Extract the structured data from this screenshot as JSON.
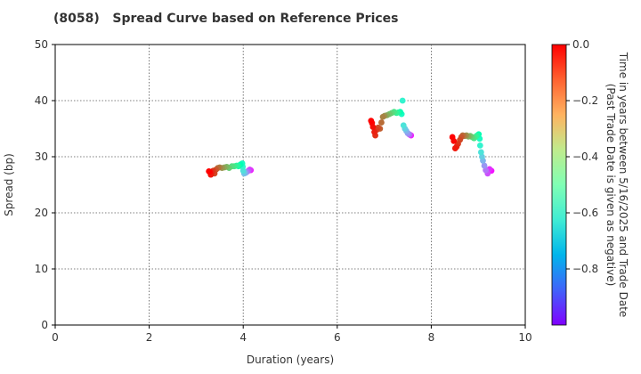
{
  "chart_data": {
    "type": "scatter",
    "title": "(8058)   Spread Curve based on Reference Prices",
    "xlabel": "Duration (years)",
    "ylabel": "Spread (bp)",
    "xlim": [
      0,
      10
    ],
    "ylim": [
      0,
      50
    ],
    "xticks": [
      "0",
      "2",
      "4",
      "6",
      "8",
      "10"
    ],
    "yticks": [
      "0",
      "10",
      "20",
      "30",
      "40",
      "50"
    ],
    "grid": true,
    "colorbar": {
      "label_line1": "Time in years between 5/16/2025 and Trade Date",
      "label_line2": "(Past Trade Date is given as negative)",
      "min": -1.0,
      "max": 0.0,
      "ticks": [
        "0.0",
        "−0.2",
        "−0.4",
        "−0.6",
        "−0.8"
      ],
      "colormap": "rainbow"
    },
    "series": [
      {
        "points": [
          [
            3.27,
            27.4,
            0.0
          ],
          [
            3.29,
            27.3,
            -0.01
          ],
          [
            3.31,
            26.8,
            -0.03
          ],
          [
            3.33,
            27.2,
            -0.05
          ],
          [
            3.36,
            27.5,
            -0.07
          ],
          [
            3.39,
            27.0,
            -0.09
          ],
          [
            3.42,
            27.7,
            -0.11
          ],
          [
            3.46,
            28.0,
            -0.14
          ],
          [
            3.5,
            28.1,
            -0.17
          ],
          [
            3.55,
            28.0,
            -0.2
          ],
          [
            3.6,
            28.1,
            -0.23
          ],
          [
            3.65,
            28.2,
            -0.26
          ],
          [
            3.7,
            28.0,
            -0.3
          ],
          [
            3.76,
            28.3,
            -0.34
          ],
          [
            3.81,
            28.3,
            -0.38
          ],
          [
            3.86,
            28.4,
            -0.42
          ],
          [
            3.9,
            28.3,
            -0.46
          ],
          [
            3.94,
            28.6,
            -0.5
          ],
          [
            3.98,
            28.8,
            -0.55
          ],
          [
            3.99,
            28.2,
            -0.6
          ],
          [
            4.0,
            27.5,
            -0.66
          ],
          [
            4.02,
            27.0,
            -0.72
          ],
          [
            4.05,
            27.1,
            -0.78
          ],
          [
            4.08,
            27.3,
            -0.84
          ],
          [
            4.11,
            27.5,
            -0.89
          ],
          [
            4.14,
            27.7,
            -0.93
          ],
          [
            4.16,
            27.6,
            -0.97
          ]
        ]
      },
      {
        "points": [
          [
            6.72,
            36.4,
            0.0
          ],
          [
            6.74,
            36.0,
            -0.01
          ],
          [
            6.76,
            35.3,
            -0.02
          ],
          [
            6.79,
            34.4,
            -0.04
          ],
          [
            6.81,
            33.8,
            -0.06
          ],
          [
            6.84,
            34.8,
            -0.08
          ],
          [
            6.87,
            35.2,
            -0.1
          ],
          [
            6.91,
            35.0,
            -0.12
          ],
          [
            6.94,
            36.1,
            -0.14
          ],
          [
            6.97,
            37.1,
            -0.17
          ],
          [
            7.01,
            37.3,
            -0.2
          ],
          [
            7.06,
            37.4,
            -0.24
          ],
          [
            7.11,
            37.6,
            -0.28
          ],
          [
            7.16,
            37.8,
            -0.32
          ],
          [
            7.21,
            38.0,
            -0.36
          ],
          [
            7.26,
            37.8,
            -0.4
          ],
          [
            7.3,
            37.9,
            -0.45
          ],
          [
            7.34,
            38.0,
            -0.5
          ],
          [
            7.37,
            37.6,
            -0.55
          ],
          [
            7.39,
            40.0,
            -0.6
          ],
          [
            7.41,
            35.6,
            -0.65
          ],
          [
            7.44,
            35.0,
            -0.7
          ],
          [
            7.47,
            34.6,
            -0.75
          ],
          [
            7.5,
            34.2,
            -0.8
          ],
          [
            7.53,
            34.0,
            -0.86
          ],
          [
            7.55,
            33.9,
            -0.92
          ],
          [
            7.57,
            33.8,
            -0.97
          ]
        ]
      },
      {
        "points": [
          [
            8.45,
            33.5,
            0.0
          ],
          [
            8.48,
            32.8,
            -0.01
          ],
          [
            8.51,
            31.5,
            -0.03
          ],
          [
            8.54,
            31.8,
            -0.05
          ],
          [
            8.57,
            32.3,
            -0.07
          ],
          [
            8.61,
            33.0,
            -0.09
          ],
          [
            8.64,
            33.5,
            -0.11
          ],
          [
            8.67,
            33.8,
            -0.14
          ],
          [
            8.71,
            33.7,
            -0.17
          ],
          [
            8.75,
            33.8,
            -0.2
          ],
          [
            8.79,
            33.6,
            -0.24
          ],
          [
            8.83,
            33.7,
            -0.28
          ],
          [
            8.87,
            33.5,
            -0.32
          ],
          [
            8.91,
            33.3,
            -0.36
          ],
          [
            8.95,
            33.6,
            -0.4
          ],
          [
            8.98,
            33.8,
            -0.45
          ],
          [
            9.01,
            34.0,
            -0.5
          ],
          [
            9.03,
            33.2,
            -0.55
          ],
          [
            9.04,
            32.0,
            -0.6
          ],
          [
            9.06,
            30.8,
            -0.65
          ],
          [
            9.08,
            30.0,
            -0.7
          ],
          [
            9.1,
            29.3,
            -0.75
          ],
          [
            9.13,
            28.4,
            -0.8
          ],
          [
            9.16,
            27.6,
            -0.85
          ],
          [
            9.2,
            27.0,
            -0.9
          ],
          [
            9.24,
            27.8,
            -0.94
          ],
          [
            9.28,
            27.5,
            -0.98
          ]
        ]
      }
    ]
  }
}
